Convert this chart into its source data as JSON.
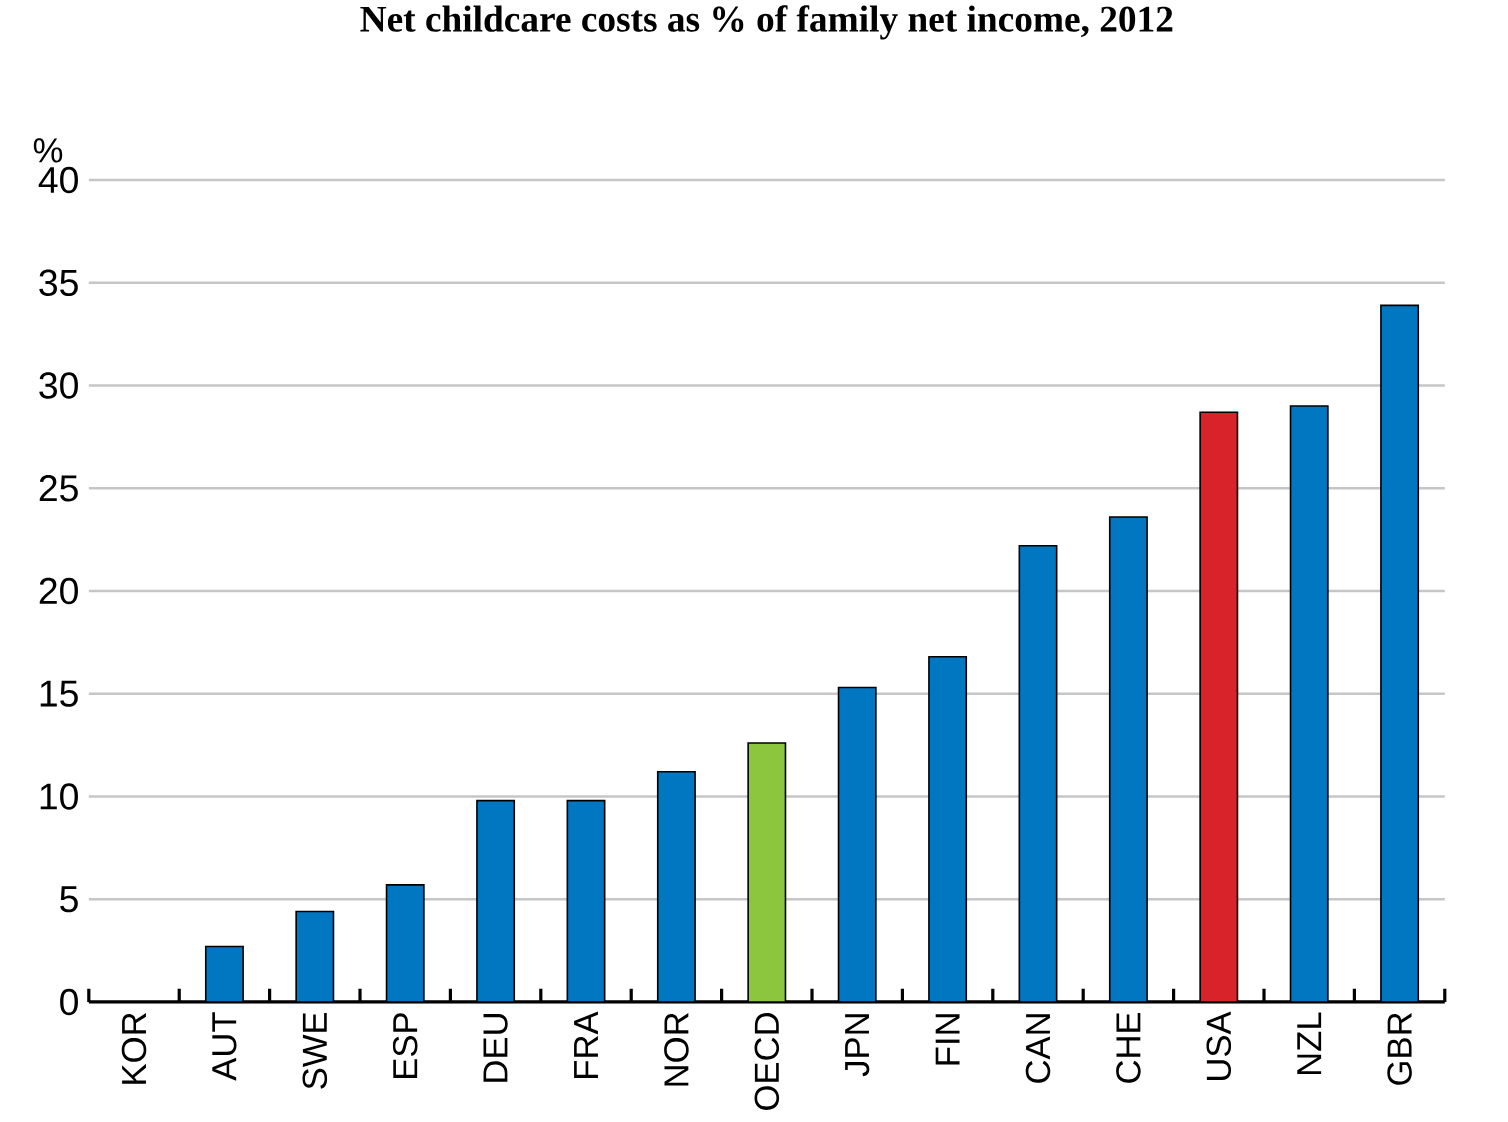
{
  "chart_data": {
    "type": "bar",
    "title": "Net childcare costs as % of family net income, 2012",
    "ylabel": "%",
    "categories": [
      "KOR",
      "AUT",
      "SWE",
      "ESP",
      "DEU",
      "FRA",
      "NOR",
      "OECD",
      "JPN",
      "FIN",
      "CAN",
      "CHE",
      "USA",
      "NZL",
      "GBR"
    ],
    "values": [
      0,
      2.7,
      4.4,
      5.7,
      9.8,
      9.8,
      11.2,
      12.6,
      15.3,
      16.8,
      22.2,
      23.6,
      28.7,
      29.0,
      33.9
    ],
    "colors": [
      "#0077c0",
      "#0077c0",
      "#0077c0",
      "#0077c0",
      "#0077c0",
      "#0077c0",
      "#0077c0",
      "#8cc63f",
      "#0077c0",
      "#0077c0",
      "#0077c0",
      "#0077c0",
      "#d9232a",
      "#0077c0",
      "#0077c0"
    ],
    "ylim": [
      0,
      40
    ],
    "yticks": [
      0,
      5,
      10,
      15,
      20,
      25,
      30,
      35,
      40
    ],
    "grid": "y"
  }
}
